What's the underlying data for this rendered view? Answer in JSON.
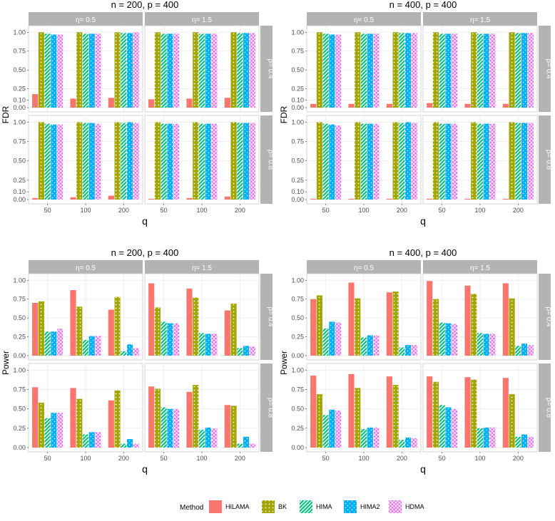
{
  "legend": {
    "title": "Method",
    "items": [
      "HILAMA",
      "BK",
      "HIMA",
      "HIMA2",
      "HDMA"
    ]
  },
  "colors": {
    "HILAMA": "#F8766D",
    "BK": "#A3A500",
    "HIMA": "#00BF7D",
    "HIMA2": "#00B0F6",
    "HDMA": "#E76BF3",
    "strip": "#b3b3b3",
    "strip_text": "#ffffff",
    "grid": "#ebebeb",
    "panel_border": "#cccccc"
  },
  "chart_data": [
    {
      "type": "bar",
      "title": "n = 200, p = 400",
      "xlabel": "q",
      "ylabel": "FDR",
      "ylim": [
        0,
        1.05
      ],
      "yticks": [
        0.0,
        0.1,
        0.25,
        0.5,
        0.75,
        1.0
      ],
      "ytick_labels": [
        "0.00",
        "0.10",
        "0.25",
        "0.50",
        "0.75",
        "1.00"
      ],
      "categories": [
        "50",
        "100",
        "200"
      ],
      "col_facets": [
        "η= 0.5",
        "η= 1.5"
      ],
      "row_facets": [
        "ρ= 0.4",
        "ρ= 0.8"
      ],
      "panels": [
        {
          "row": 0,
          "col": 0,
          "series": [
            {
              "name": "HILAMA",
              "values": [
                0.18,
                0.12,
                0.13
              ]
            },
            {
              "name": "BK",
              "values": [
                1.0,
                1.0,
                1.0
              ]
            },
            {
              "name": "HIMA",
              "values": [
                0.98,
                0.98,
                0.99
              ]
            },
            {
              "name": "HIMA2",
              "values": [
                0.97,
                0.98,
                0.99
              ]
            },
            {
              "name": "HDMA",
              "values": [
                0.97,
                0.98,
                1.0
              ]
            }
          ]
        },
        {
          "row": 0,
          "col": 1,
          "series": [
            {
              "name": "HILAMA",
              "values": [
                0.11,
                0.12,
                0.13
              ]
            },
            {
              "name": "BK",
              "values": [
                1.0,
                1.0,
                1.0
              ]
            },
            {
              "name": "HIMA",
              "values": [
                0.98,
                0.98,
                0.99
              ]
            },
            {
              "name": "HIMA2",
              "values": [
                0.98,
                0.98,
                0.99
              ]
            },
            {
              "name": "HDMA",
              "values": [
                0.98,
                0.98,
                0.99
              ]
            }
          ]
        },
        {
          "row": 1,
          "col": 0,
          "series": [
            {
              "name": "HILAMA",
              "values": [
                0.02,
                0.03,
                0.05
              ]
            },
            {
              "name": "BK",
              "values": [
                1.0,
                1.0,
                1.0
              ]
            },
            {
              "name": "HIMA",
              "values": [
                0.98,
                0.99,
                0.99
              ]
            },
            {
              "name": "HIMA2",
              "values": [
                0.97,
                0.99,
                1.0
              ]
            },
            {
              "name": "HDMA",
              "values": [
                0.97,
                0.98,
                0.99
              ]
            }
          ]
        },
        {
          "row": 1,
          "col": 1,
          "series": [
            {
              "name": "HILAMA",
              "values": [
                0.01,
                0.02,
                0.04
              ]
            },
            {
              "name": "BK",
              "values": [
                1.0,
                1.0,
                1.0
              ]
            },
            {
              "name": "HIMA",
              "values": [
                0.98,
                0.98,
                0.99
              ]
            },
            {
              "name": "HIMA2",
              "values": [
                0.98,
                0.98,
                0.99
              ]
            },
            {
              "name": "HDMA",
              "values": [
                0.98,
                0.98,
                0.99
              ]
            }
          ]
        }
      ]
    },
    {
      "type": "bar",
      "title": "n = 400, p = 400",
      "xlabel": "q",
      "ylabel": "FDR",
      "ylim": [
        0,
        1.05
      ],
      "yticks": [
        0.0,
        0.1,
        0.25,
        0.5,
        0.75,
        1.0
      ],
      "ytick_labels": [
        "0.00",
        "0.10",
        "0.25",
        "0.50",
        "0.75",
        "1.00"
      ],
      "categories": [
        "50",
        "100",
        "200"
      ],
      "col_facets": [
        "η= 0.5",
        "η= 1.5"
      ],
      "row_facets": [
        "ρ= 0.4",
        "ρ= 0.8"
      ],
      "panels": [
        {
          "row": 0,
          "col": 0,
          "series": [
            {
              "name": "HILAMA",
              "values": [
                0.05,
                0.05,
                0.05
              ]
            },
            {
              "name": "BK",
              "values": [
                1.0,
                1.0,
                1.0
              ]
            },
            {
              "name": "HIMA",
              "values": [
                0.98,
                0.98,
                0.99
              ]
            },
            {
              "name": "HIMA2",
              "values": [
                0.97,
                0.98,
                0.99
              ]
            },
            {
              "name": "HDMA",
              "values": [
                0.97,
                0.98,
                0.99
              ]
            }
          ]
        },
        {
          "row": 0,
          "col": 1,
          "series": [
            {
              "name": "HILAMA",
              "values": [
                0.06,
                0.05,
                0.05
              ]
            },
            {
              "name": "BK",
              "values": [
                1.0,
                1.0,
                1.0
              ]
            },
            {
              "name": "HIMA",
              "values": [
                0.98,
                0.98,
                0.99
              ]
            },
            {
              "name": "HIMA2",
              "values": [
                0.98,
                0.98,
                0.99
              ]
            },
            {
              "name": "HDMA",
              "values": [
                0.98,
                0.98,
                0.99
              ]
            }
          ]
        },
        {
          "row": 1,
          "col": 0,
          "series": [
            {
              "name": "HILAMA",
              "values": [
                0.01,
                0.01,
                0.01
              ]
            },
            {
              "name": "BK",
              "values": [
                1.0,
                1.0,
                1.0
              ]
            },
            {
              "name": "HIMA",
              "values": [
                0.98,
                0.98,
                0.99
              ]
            },
            {
              "name": "HIMA2",
              "values": [
                0.97,
                0.98,
                1.0
              ]
            },
            {
              "name": "HDMA",
              "values": [
                0.96,
                0.98,
                0.99
              ]
            }
          ]
        },
        {
          "row": 1,
          "col": 1,
          "series": [
            {
              "name": "HILAMA",
              "values": [
                0.01,
                0.01,
                0.01
              ]
            },
            {
              "name": "BK",
              "values": [
                1.0,
                1.0,
                1.0
              ]
            },
            {
              "name": "HIMA",
              "values": [
                0.98,
                0.98,
                0.99
              ]
            },
            {
              "name": "HIMA2",
              "values": [
                0.98,
                0.98,
                0.99
              ]
            },
            {
              "name": "HDMA",
              "values": [
                0.98,
                0.98,
                0.99
              ]
            }
          ]
        }
      ]
    },
    {
      "type": "bar",
      "title": "n = 200, p = 400",
      "xlabel": "q",
      "ylabel": "Power",
      "ylim": [
        0,
        1.05
      ],
      "yticks": [
        0.0,
        0.25,
        0.5,
        0.75,
        1.0
      ],
      "ytick_labels": [
        "0.00",
        "0.25",
        "0.50",
        "0.75",
        "1.00"
      ],
      "categories": [
        "50",
        "100",
        "200"
      ],
      "col_facets": [
        "η= 0.5",
        "η= 1.5"
      ],
      "row_facets": [
        "ρ= 0.4",
        "ρ= 0.8"
      ],
      "panels": [
        {
          "row": 0,
          "col": 0,
          "series": [
            {
              "name": "HILAMA",
              "values": [
                0.7,
                0.87,
                0.61
              ]
            },
            {
              "name": "BK",
              "values": [
                0.72,
                0.65,
                0.78
              ]
            },
            {
              "name": "HIMA",
              "values": [
                0.32,
                0.21,
                0.06
              ]
            },
            {
              "name": "HIMA2",
              "values": [
                0.32,
                0.26,
                0.15
              ]
            },
            {
              "name": "HDMA",
              "values": [
                0.36,
                0.26,
                0.1
              ]
            }
          ]
        },
        {
          "row": 0,
          "col": 1,
          "series": [
            {
              "name": "HILAMA",
              "values": [
                0.96,
                0.89,
                0.6
              ]
            },
            {
              "name": "BK",
              "values": [
                0.64,
                0.77,
                0.69
              ]
            },
            {
              "name": "HIMA",
              "values": [
                0.45,
                0.3,
                0.1
              ]
            },
            {
              "name": "HIMA2",
              "values": [
                0.43,
                0.29,
                0.13
              ]
            },
            {
              "name": "HDMA",
              "values": [
                0.43,
                0.29,
                0.12
              ]
            }
          ]
        },
        {
          "row": 1,
          "col": 0,
          "series": [
            {
              "name": "HILAMA",
              "values": [
                0.78,
                0.77,
                0.61
              ]
            },
            {
              "name": "BK",
              "values": [
                0.58,
                0.63,
                0.74
              ]
            },
            {
              "name": "HIMA",
              "values": [
                0.38,
                0.17,
                0.05
              ]
            },
            {
              "name": "HIMA2",
              "values": [
                0.45,
                0.2,
                0.11
              ]
            },
            {
              "name": "HDMA",
              "values": [
                0.45,
                0.2,
                0.05
              ]
            }
          ]
        },
        {
          "row": 1,
          "col": 1,
          "series": [
            {
              "name": "HILAMA",
              "values": [
                0.79,
                0.72,
                0.55
              ]
            },
            {
              "name": "BK",
              "values": [
                0.76,
                0.81,
                0.54
              ]
            },
            {
              "name": "HIMA",
              "values": [
                0.52,
                0.23,
                0.05
              ]
            },
            {
              "name": "HIMA2",
              "values": [
                0.5,
                0.26,
                0.14
              ]
            },
            {
              "name": "HDMA",
              "values": [
                0.5,
                0.25,
                0.05
              ]
            }
          ]
        }
      ]
    },
    {
      "type": "bar",
      "title": "n = 400, p = 400",
      "xlabel": "q",
      "ylabel": "Power",
      "ylim": [
        0,
        1.05
      ],
      "yticks": [
        0.0,
        0.25,
        0.5,
        0.75,
        1.0
      ],
      "ytick_labels": [
        "0.00",
        "0.25",
        "0.50",
        "0.75",
        "1.00"
      ],
      "categories": [
        "50",
        "100",
        "200"
      ],
      "col_facets": [
        "η= 0.5",
        "η= 1.5"
      ],
      "row_facets": [
        "ρ= 0.4",
        "ρ= 0.8"
      ],
      "panels": [
        {
          "row": 0,
          "col": 0,
          "series": [
            {
              "name": "HILAMA",
              "values": [
                0.75,
                0.97,
                0.84
              ]
            },
            {
              "name": "BK",
              "values": [
                0.8,
                0.76,
                0.85
              ]
            },
            {
              "name": "HIMA",
              "values": [
                0.36,
                0.24,
                0.11
              ]
            },
            {
              "name": "HIMA2",
              "values": [
                0.45,
                0.27,
                0.14
              ]
            },
            {
              "name": "HDMA",
              "values": [
                0.44,
                0.27,
                0.14
              ]
            }
          ]
        },
        {
          "row": 0,
          "col": 1,
          "series": [
            {
              "name": "HILAMA",
              "values": [
                0.99,
                0.93,
                0.96
              ]
            },
            {
              "name": "BK",
              "values": [
                0.75,
                0.82,
                0.76
              ]
            },
            {
              "name": "HIMA",
              "values": [
                0.44,
                0.3,
                0.13
              ]
            },
            {
              "name": "HIMA2",
              "values": [
                0.43,
                0.29,
                0.16
              ]
            },
            {
              "name": "HDMA",
              "values": [
                0.42,
                0.29,
                0.14
              ]
            }
          ]
        },
        {
          "row": 1,
          "col": 0,
          "series": [
            {
              "name": "HILAMA",
              "values": [
                0.93,
                0.95,
                0.92
              ]
            },
            {
              "name": "BK",
              "values": [
                0.69,
                0.77,
                0.81
              ]
            },
            {
              "name": "HIMA",
              "values": [
                0.42,
                0.24,
                0.1
              ]
            },
            {
              "name": "HIMA2",
              "values": [
                0.49,
                0.26,
                0.13
              ]
            },
            {
              "name": "HDMA",
              "values": [
                0.48,
                0.26,
                0.12
              ]
            }
          ]
        },
        {
          "row": 1,
          "col": 1,
          "series": [
            {
              "name": "HILAMA",
              "values": [
                0.92,
                0.91,
                0.9
              ]
            },
            {
              "name": "BK",
              "values": [
                0.85,
                0.88,
                0.69
              ]
            },
            {
              "name": "HIMA",
              "values": [
                0.55,
                0.25,
                0.14
              ]
            },
            {
              "name": "HIMA2",
              "values": [
                0.52,
                0.26,
                0.17
              ]
            },
            {
              "name": "HDMA",
              "values": [
                0.5,
                0.26,
                0.14
              ]
            }
          ]
        }
      ]
    }
  ]
}
